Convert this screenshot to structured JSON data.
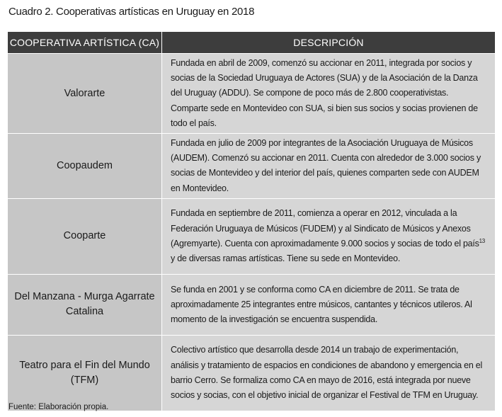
{
  "caption": "Cuadro 2. Cooperativas artísticas en Uruguay en 2018",
  "headers": {
    "col1": "COOPERATIVA ARTÍSTICA (CA)",
    "col2": "DESCRIPCIÓN"
  },
  "rows": [
    {
      "name": "Valorarte",
      "description": "Fundada en abril de 2009, comenzó su accionar en 2011, integrada por socios y socias de la Sociedad Uruguaya de Actores (SUA) y de la Asociación de la Danza del Uruguay (ADDU). Se compone de poco más de 2.800 cooperativistas. Comparte sede en Montevideo con SUA, si bien sus socios y socias provienen de todo el país."
    },
    {
      "name": "Coopaudem",
      "description": "Fundada en julio de 2009 por integrantes de la Asociación Uruguaya de Músicos (AUDEM). Comenzó su accionar en 2011. Cuenta con alrededor de 3.000 socios y socias de Montevideo y del interior del país, quienes comparten sede con AUDEM en Montevideo."
    },
    {
      "name": "Cooparte",
      "description_before": "Fundada en septiembre de 2011, comienza a operar en 2012, vinculada a la Federación Uruguaya de Músicos (FUDEM) y al Sindicato de Músicos y Anexos (Agremyarte). Cuenta con aproximadamente 9.000 socios y socias de todo el país",
      "footnote": "13",
      "description_after": " y de diversas ramas artísticas. Tiene su sede en Montevideo."
    },
    {
      "name": "Del Manzana - Murga Agarrate Catalina",
      "description": "Se funda en 2001 y se conforma como CA en diciembre de 2011. Se trata de aproximadamente 25 integrantes entre músicos, cantantes y técnicos utileros. Al momento de la investigación se encuentra suspendida."
    },
    {
      "name": "Teatro para el Fin del Mundo (TFM)",
      "description": "Colectivo artístico que desarrolla desde 2014 un trabajo de experimentación, análisis y tratamiento de espacios en condiciones de abandono y emergencia en el barrio Cerro. Se formaliza como CA en mayo de 2016, está integrada por nueve socios y socias, con el objetivo inicial de organizar el Festival de TFM en Uruguay."
    }
  ],
  "source": "Fuente: Elaboración propia."
}
